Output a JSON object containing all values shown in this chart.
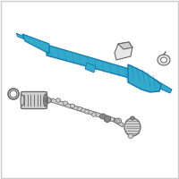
{
  "bg_color": "#ffffff",
  "border_color": "#cccccc",
  "rack_color": "#33aacc",
  "rack_edge": "#1177aa",
  "gray_fill": "#d0d0d0",
  "gray_edge": "#666666",
  "dark_gray": "#888888",
  "light_gray": "#e8e8e8",
  "figure_size": [
    2.0,
    2.0
  ],
  "dpi": 100
}
